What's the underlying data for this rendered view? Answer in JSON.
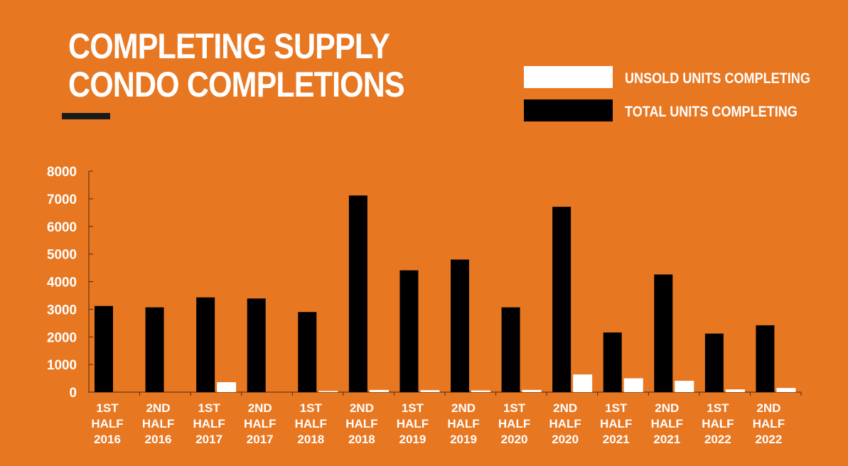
{
  "header": {
    "title_line1": "COMPLETING SUPPLY",
    "title_line2": "CONDO COMPLETIONS"
  },
  "colors": {
    "background": "#E87722",
    "unsold": "#ffffff",
    "total": "#000000",
    "axis": "#4a2a10",
    "text": "#ffffff"
  },
  "legend": {
    "items": [
      {
        "label": "UNSOLD UNITS COMPLETING",
        "color": "#ffffff"
      },
      {
        "label": "TOTAL UNITS COMPLETING",
        "color": "#000000"
      }
    ]
  },
  "chart_data": {
    "type": "bar",
    "title": "COMPLETING SUPPLY CONDO COMPLETIONS",
    "categories": [
      [
        "1ST",
        "HALF",
        "2016"
      ],
      [
        "2ND",
        "HALF",
        "2016"
      ],
      [
        "1ST",
        "HALF",
        "2017"
      ],
      [
        "2ND",
        "HALF",
        "2017"
      ],
      [
        "1ST",
        "HALF",
        "2018"
      ],
      [
        "2ND",
        "HALF",
        "2018"
      ],
      [
        "1ST",
        "HALF",
        "2019"
      ],
      [
        "2ND",
        "HALF",
        "2019"
      ],
      [
        "1ST",
        "HALF",
        "2020"
      ],
      [
        "2ND",
        "HALF",
        "2020"
      ],
      [
        "1ST",
        "HALF",
        "2021"
      ],
      [
        "2ND",
        "HALF",
        "2021"
      ],
      [
        "1ST",
        "HALF",
        "2022"
      ],
      [
        "2ND",
        "HALF",
        "2022"
      ]
    ],
    "series": [
      {
        "name": "TOTAL UNITS COMPLETING",
        "color": "#000000",
        "values": [
          3120,
          3070,
          3430,
          3390,
          2900,
          7120,
          4410,
          4800,
          3070,
          6710,
          2160,
          4260,
          2120,
          2420
        ]
      },
      {
        "name": "UNSOLD UNITS COMPLETING",
        "color": "#ffffff",
        "values": [
          0,
          0,
          360,
          0,
          40,
          80,
          70,
          60,
          80,
          640,
          500,
          410,
          100,
          150
        ]
      }
    ],
    "ylim": [
      0,
      8000
    ],
    "yticks": [
      0,
      1000,
      2000,
      3000,
      4000,
      5000,
      6000,
      7000,
      8000
    ],
    "legend_position": "top-right",
    "grid": false
  }
}
